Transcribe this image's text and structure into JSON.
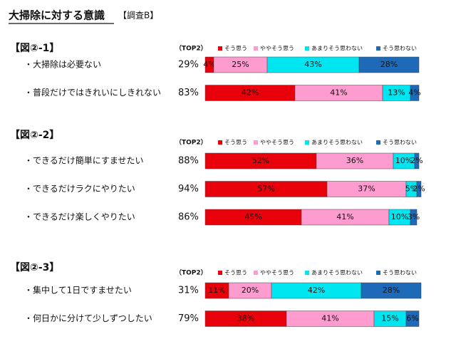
{
  "title": "大掃除に対する意識",
  "subtitle": "【調査B】",
  "chart_data": [
    {
      "type": "bar",
      "title": "【図②-1】",
      "top2_title": "（TOP2）",
      "categories": [
        "・大掃除は必要ない",
        "・普段だけではきれいにしきれない"
      ],
      "top2": {
        "values": [
          29,
          83
        ],
        "value_labels": [
          "29%",
          "83%"
        ]
      },
      "series": [
        {
          "name": "そう思う",
          "color": "#e8000b",
          "values": [
            4,
            42
          ],
          "value_labels": [
            "4%",
            "42%"
          ]
        },
        {
          "name": "ややそう思う",
          "color": "#ff9ccf",
          "values": [
            25,
            41
          ],
          "value_labels": [
            "25%",
            "41%"
          ]
        },
        {
          "name": "あまりそう思わない",
          "color": "#00e6f0",
          "values": [
            43,
            13
          ],
          "value_labels": [
            "43%",
            "13%"
          ]
        },
        {
          "name": "そう思わない",
          "color": "#1f6ab8",
          "values": [
            28,
            4
          ],
          "value_labels": [
            "28%",
            "4%"
          ]
        }
      ]
    },
    {
      "type": "bar",
      "title": "【図②-2】",
      "top2_title": "（TOP2）",
      "categories": [
        "・できるだけ簡単にすませたい",
        "・できるだけラクにやりたい",
        "・できるだけ楽しくやりたい"
      ],
      "top2": {
        "values": [
          88,
          94,
          86
        ],
        "value_labels": [
          "88%",
          "94%",
          "86%"
        ]
      },
      "series": [
        {
          "name": "そう思う",
          "color": "#e8000b",
          "values": [
            52,
            57,
            45
          ],
          "value_labels": [
            "52%",
            "57%",
            "45%"
          ]
        },
        {
          "name": "ややそう思う",
          "color": "#ff9ccf",
          "values": [
            36,
            37,
            41
          ],
          "value_labels": [
            "36%",
            "37%",
            "41%"
          ]
        },
        {
          "name": "あまりそう思わない",
          "color": "#00e6f0",
          "values": [
            10,
            5,
            10
          ],
          "value_labels": [
            "10%",
            "5%",
            "10%"
          ]
        },
        {
          "name": "そう思わない",
          "color": "#1f6ab8",
          "values": [
            2,
            2,
            3
          ],
          "value_labels": [
            "2%",
            "2%",
            "3%"
          ]
        }
      ]
    },
    {
      "type": "bar",
      "title": "【図②-3】",
      "top2_title": "（TOP2）",
      "categories": [
        "・集中して1日ですませたい",
        "・何日かに分けて少しずつしたい"
      ],
      "top2": {
        "values": [
          31,
          79
        ],
        "value_labels": [
          "31%",
          "79%"
        ]
      },
      "series": [
        {
          "name": "そう思う",
          "color": "#e8000b",
          "values": [
            11,
            38
          ],
          "value_labels": [
            "11%",
            "38%"
          ]
        },
        {
          "name": "ややそう思う",
          "color": "#ff9ccf",
          "values": [
            20,
            41
          ],
          "value_labels": [
            "20%",
            "41%"
          ]
        },
        {
          "name": "あまりそう思わない",
          "color": "#00e6f0",
          "values": [
            42,
            15
          ],
          "value_labels": [
            "42%",
            "15%"
          ]
        },
        {
          "name": "そう思わない",
          "color": "#1f6ab8",
          "values": [
            28,
            6
          ],
          "value_labels": [
            "28%",
            "6%"
          ]
        }
      ]
    }
  ]
}
